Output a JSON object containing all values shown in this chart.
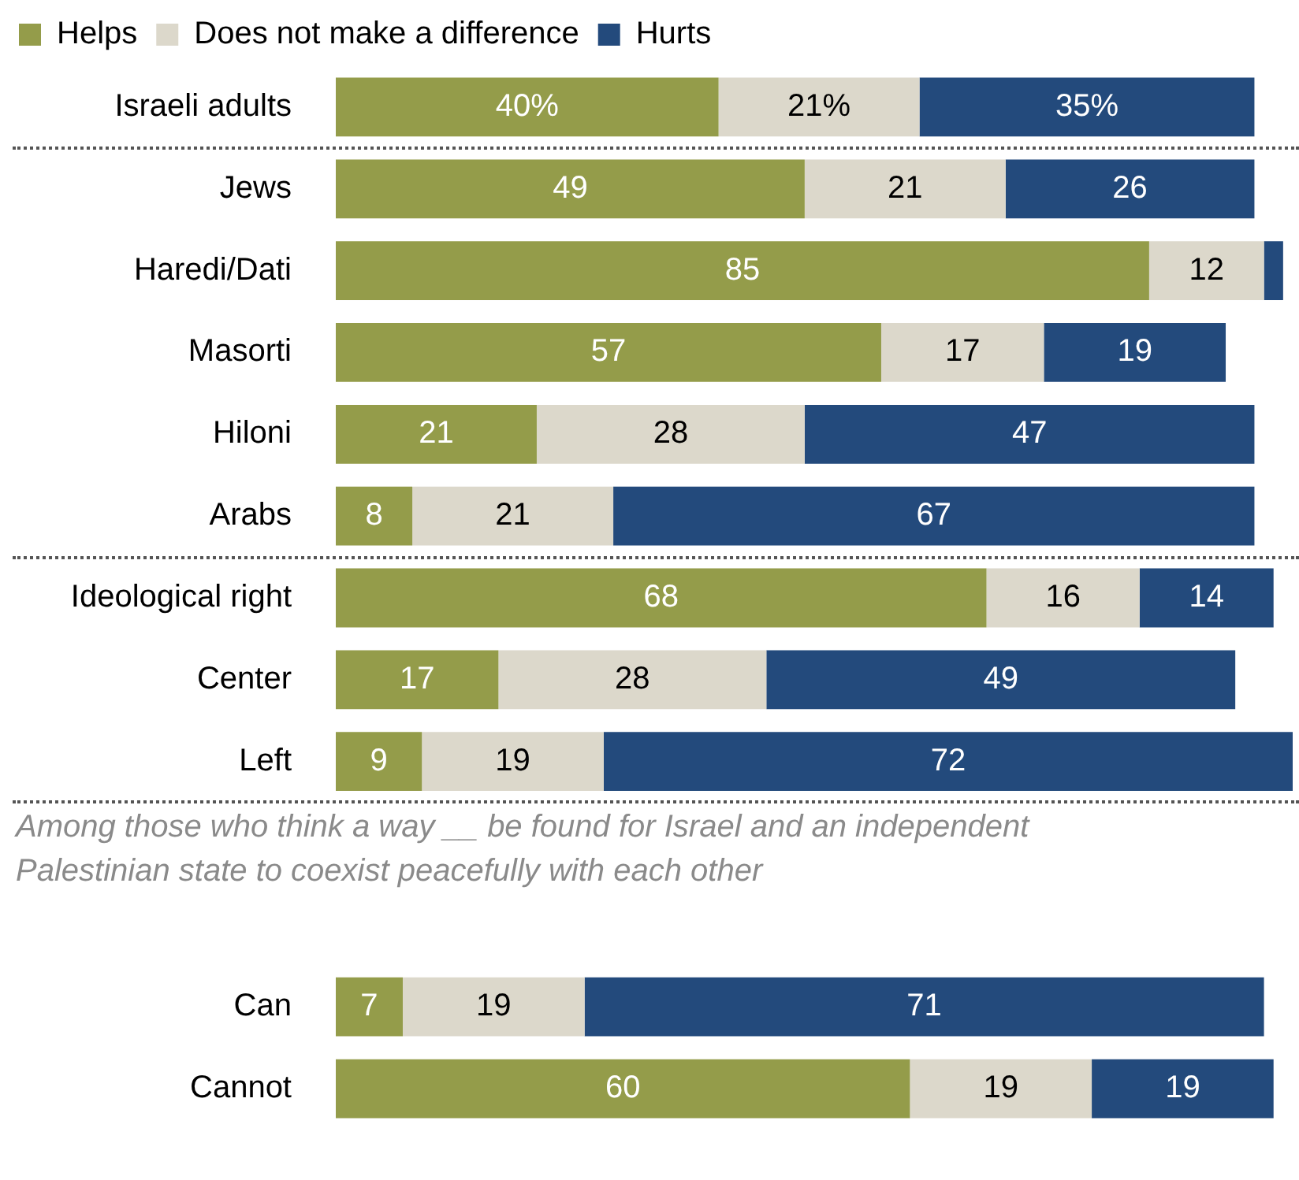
{
  "chart_data": {
    "type": "bar",
    "orientation": "horizontal",
    "stacked": true,
    "legend": "top left",
    "tick_labels": "y",
    "xlim": [
      0,
      100
    ],
    "categories": [
      "Israeli adults",
      "Jews",
      "Haredi/Dati",
      "Masorti",
      "Hiloni",
      "Arabs",
      "Ideological right",
      "Center",
      "Left",
      null,
      null,
      "Can",
      "Cannot"
    ],
    "series": [
      {
        "name": "Helps",
        "color": "#949c4a",
        "values": [
          40,
          49,
          85,
          57,
          21,
          8,
          68,
          17,
          9,
          null,
          null,
          7,
          60
        ],
        "value_labels": [
          "40%",
          "49",
          "85",
          "57",
          "21",
          "8",
          "68",
          "17",
          "9",
          null,
          null,
          "7",
          "60"
        ]
      },
      {
        "name": "Does not make a difference",
        "color": "#dcd8cb",
        "values": [
          21,
          21,
          12,
          17,
          28,
          21,
          16,
          28,
          19,
          null,
          null,
          19,
          19
        ],
        "value_labels": [
          "21%",
          "21",
          "12",
          "17",
          "28",
          "21",
          "16",
          "28",
          "19",
          null,
          null,
          "19",
          "19"
        ]
      },
      {
        "name": "Hurts",
        "color": "#234a7c",
        "values": [
          35,
          26,
          2,
          19,
          47,
          67,
          14,
          49,
          72,
          null,
          null,
          71,
          19
        ],
        "value_labels": [
          "35%",
          "26",
          null,
          "19",
          "47",
          "67",
          "14",
          "49",
          "72",
          null,
          null,
          "71",
          "19"
        ]
      }
    ],
    "annotations": [
      "Among those who think a way __ be found for Israel and an independent Palestinian state to coexist peacefully with each other"
    ]
  }
}
